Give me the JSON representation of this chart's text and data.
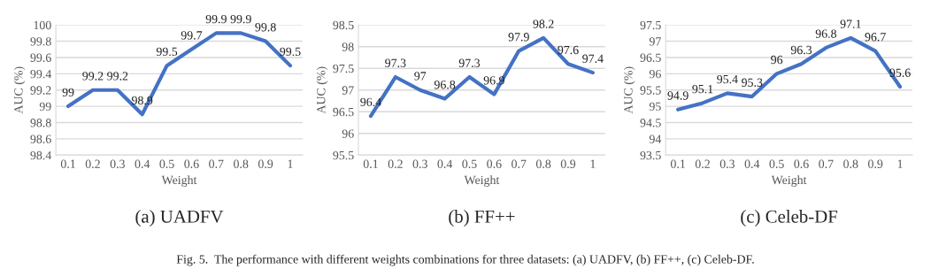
{
  "chart_data": [
    {
      "type": "line",
      "title": "(a) UADFV",
      "xlabel": "Weight",
      "ylabel": "AUC (%)",
      "categories": [
        "0.1",
        "0.2",
        "0.3",
        "0.4",
        "0.5",
        "0.6",
        "0.7",
        "0.8",
        "0.9",
        "1"
      ],
      "series": [
        {
          "color": "#4472c4",
          "values": [
            99,
            99.2,
            99.2,
            98.9,
            99.5,
            99.7,
            99.9,
            99.9,
            99.8,
            99.5
          ]
        }
      ],
      "ylim": [
        98.4,
        100
      ],
      "yticks": [
        98.4,
        98.6,
        98.8,
        99,
        99.2,
        99.4,
        99.6,
        99.8,
        100
      ],
      "grid": "y",
      "data_labels": true,
      "marker": "none",
      "line_style": "solid",
      "legend": false,
      "annotations": [
        "Fig. 5.  The performance with different weights combinations for three datasets: (a) UADFV, (b) FF++, (c) Celeb-DF."
      ]
    },
    {
      "type": "line",
      "title": "(b) FF++",
      "xlabel": "Weight",
      "ylabel": "AUC (%)",
      "categories": [
        "0.1",
        "0.2",
        "0.3",
        "0.4",
        "0.5",
        "0.6",
        "0.7",
        "0.8",
        "0.9",
        "1"
      ],
      "series": [
        {
          "color": "#4472c4",
          "values": [
            96.4,
            97.3,
            97,
            96.8,
            97.3,
            96.9,
            97.9,
            98.2,
            97.6,
            97.4
          ]
        }
      ],
      "ylim": [
        95.5,
        98.5
      ],
      "yticks": [
        95.5,
        96,
        96.5,
        97,
        97.5,
        98,
        98.5
      ],
      "grid": "y",
      "data_labels": true,
      "marker": "none",
      "line_style": "solid",
      "legend": false
    },
    {
      "type": "line",
      "title": "(c) Celeb-DF",
      "xlabel": "Weight",
      "ylabel": "AUC (%)",
      "categories": [
        "0.1",
        "0.2",
        "0.3",
        "0.4",
        "0.5",
        "0.6",
        "0.7",
        "0.8",
        "0.9",
        "1"
      ],
      "series": [
        {
          "color": "#4472c4",
          "values": [
            94.9,
            95.1,
            95.4,
            95.3,
            96,
            96.3,
            96.8,
            97.1,
            96.7,
            95.6
          ]
        }
      ],
      "ylim": [
        93.5,
        97.5
      ],
      "yticks": [
        93.5,
        94,
        94.5,
        95,
        95.5,
        96,
        96.5,
        97,
        97.5
      ],
      "grid": "y",
      "data_labels": true,
      "marker": "none",
      "line_style": "solid",
      "legend": false
    }
  ]
}
